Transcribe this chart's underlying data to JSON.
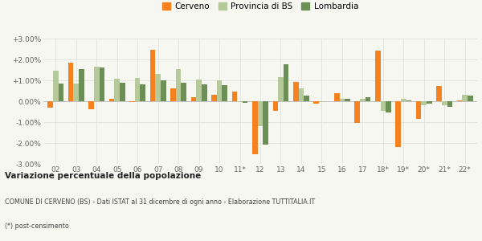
{
  "years": [
    "02",
    "03",
    "04",
    "05",
    "06",
    "07",
    "08",
    "09",
    "10",
    "11*",
    "12",
    "13",
    "14",
    "15",
    "16",
    "17",
    "18*",
    "19*",
    "20*",
    "21*",
    "22*"
  ],
  "cerveno": [
    -0.3,
    1.83,
    -0.4,
    0.12,
    -0.05,
    2.45,
    0.6,
    0.2,
    0.3,
    0.45,
    -2.55,
    -0.45,
    0.93,
    -0.1,
    0.4,
    -1.05,
    2.42,
    -2.18,
    -0.85,
    0.72,
    0.05
  ],
  "provincia_bs": [
    1.47,
    0.85,
    1.65,
    1.08,
    1.1,
    1.3,
    1.55,
    1.05,
    1.0,
    -0.02,
    -1.2,
    1.15,
    0.62,
    -0.05,
    0.1,
    0.1,
    -0.45,
    0.12,
    -0.2,
    -0.2,
    0.3
  ],
  "lombardia": [
    0.83,
    1.53,
    1.6,
    0.87,
    0.82,
    1.0,
    0.87,
    0.82,
    0.78,
    -0.08,
    -2.08,
    1.78,
    0.28,
    0.01,
    0.1,
    0.18,
    -0.55,
    0.05,
    -0.1,
    -0.28,
    0.28
  ],
  "color_cerveno": "#f58220",
  "color_provincia": "#b5c99a",
  "color_lombardia": "#6b8f55",
  "bg_color": "#f7f7f2",
  "grid_color": "#dddddd",
  "title": "Variazione percentuale della popolazione",
  "subtitle": "COMUNE DI CERVENO (BS) - Dati ISTAT al 31 dicembre di ogni anno - Elaborazione TUTTITALIA.IT",
  "footnote": "(*) post-censimento",
  "ylim": [
    -3.0,
    3.0
  ],
  "yticks": [
    -3.0,
    -2.0,
    -1.0,
    0.0,
    1.0,
    2.0,
    3.0
  ],
  "legend_labels": [
    "Cerveno",
    "Provincia di BS",
    "Lombardia"
  ]
}
